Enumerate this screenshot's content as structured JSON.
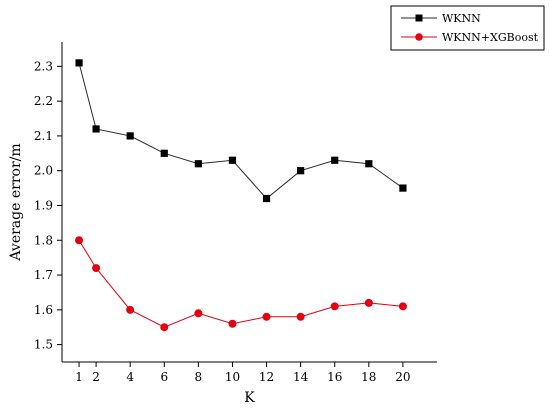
{
  "chart_data": {
    "type": "line",
    "xlabel": "K",
    "ylabel": "Average error/m",
    "x": [
      1,
      2,
      4,
      6,
      8,
      10,
      12,
      14,
      16,
      18,
      20
    ],
    "x_tick_labels": [
      "1",
      "2",
      "4",
      "6",
      "8",
      "10",
      "12",
      "14",
      "16",
      "18",
      "20"
    ],
    "y_ticks": [
      1.5,
      1.6,
      1.7,
      1.8,
      1.9,
      2.0,
      2.1,
      2.2,
      2.3
    ],
    "y_tick_labels": [
      "1.5",
      "1.6",
      "1.7",
      "1.8",
      "1.9",
      "2.0",
      "2.1",
      "2.2",
      "2.3"
    ],
    "xlim": [
      0,
      22
    ],
    "ylim": [
      1.45,
      2.37
    ],
    "grid": false,
    "legend_position": "top-right",
    "series": [
      {
        "name": "WKNN",
        "marker": "square",
        "color": "#000000",
        "line_color": "#2b2b2b",
        "values": [
          2.31,
          2.12,
          2.1,
          2.05,
          2.02,
          2.03,
          1.92,
          2.0,
          2.03,
          2.02,
          1.95
        ]
      },
      {
        "name": "WKNN+XGBoost",
        "marker": "circle",
        "color": "#e3000f",
        "line_color": "#e3000f",
        "values": [
          1.8,
          1.72,
          1.6,
          1.55,
          1.59,
          1.56,
          1.58,
          1.58,
          1.61,
          1.62,
          1.61
        ]
      }
    ]
  }
}
